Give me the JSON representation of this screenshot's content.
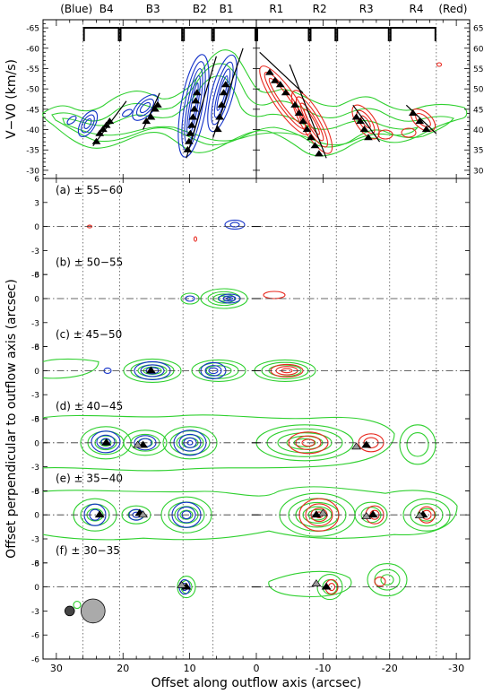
{
  "chart_data": {
    "type": "contour",
    "top_labels": [
      "(Blue)",
      "B4",
      "B3",
      "B2",
      "B1",
      "R1",
      "R2",
      "R3",
      "R4",
      "(Red)"
    ],
    "xlabel": "Offset along outflow axis (arcsec)",
    "xlim": [
      32,
      -32
    ],
    "xticks": [
      30,
      20,
      10,
      0,
      -10,
      -20,
      -30
    ],
    "xtick_labels": [
      "30",
      "20",
      "10",
      "0",
      "-10",
      "-20",
      "-30"
    ],
    "pv_panel": {
      "ylabel": "V−V0 (km/s)",
      "ylim": [
        -28,
        -67
      ],
      "yticks": [
        -65,
        -60,
        -55,
        -50,
        -45,
        -40,
        -35,
        -30
      ],
      "ytick_labels": [
        "-65",
        "-60",
        "-55",
        "-50",
        "-45",
        "-40",
        "-35",
        "-30"
      ],
      "ytick_labels_right": [
        "65",
        "60",
        "55",
        "50",
        "45",
        "40",
        "35",
        "30"
      ],
      "brackets": [
        {
          "label": "B4",
          "x1": 26,
          "x2": 20.5
        },
        {
          "label": "B3",
          "x1": 20.5,
          "x2": 11
        },
        {
          "label": "B2",
          "x1": 11,
          "x2": 6.5
        },
        {
          "label": "B1",
          "x1": 6.5,
          "x2": 0
        },
        {
          "label": "R1",
          "x1": 0,
          "x2": -8
        },
        {
          "label": "R2",
          "x1": -8,
          "x2": -12
        },
        {
          "label": "R3",
          "x1": -12,
          "x2": -20
        },
        {
          "label": "R4",
          "x1": -20,
          "x2": -27
        }
      ],
      "fit_lines": [
        {
          "x": [
            24.5,
            19.5
          ],
          "v": [
            -36,
            -47
          ]
        },
        {
          "x": [
            17,
            14.5
          ],
          "v": [
            -40,
            -49
          ]
        },
        {
          "x": [
            10.5,
            6
          ],
          "v": [
            -33,
            -58
          ]
        },
        {
          "x": [
            6.5,
            2
          ],
          "v": [
            -38,
            -60
          ]
        },
        {
          "x": [
            -0.5,
            -7
          ],
          "v": [
            -59,
            -49
          ]
        },
        {
          "x": [
            -5,
            -10.5
          ],
          "v": [
            -56,
            -33
          ]
        },
        {
          "x": [
            -14.5,
            -18.5
          ],
          "v": [
            -46,
            -37
          ]
        },
        {
          "x": [
            -22.5,
            -27
          ],
          "v": [
            -46,
            -39
          ]
        }
      ],
      "triangles": [
        {
          "x": 24.0,
          "v": -37
        },
        {
          "x": 23.5,
          "v": -39
        },
        {
          "x": 23.0,
          "v": -40
        },
        {
          "x": 22.5,
          "v": -41
        },
        {
          "x": 22.0,
          "v": -42
        },
        {
          "x": 16.5,
          "v": -42
        },
        {
          "x": 15.8,
          "v": -43
        },
        {
          "x": 15.2,
          "v": -45
        },
        {
          "x": 14.8,
          "v": -46
        },
        {
          "x": 10.3,
          "v": -35
        },
        {
          "x": 10.1,
          "v": -37
        },
        {
          "x": 9.9,
          "v": -39
        },
        {
          "x": 9.7,
          "v": -41
        },
        {
          "x": 9.5,
          "v": -43
        },
        {
          "x": 9.3,
          "v": -45
        },
        {
          "x": 9.1,
          "v": -47
        },
        {
          "x": 8.9,
          "v": -49
        },
        {
          "x": 5.8,
          "v": -40
        },
        {
          "x": 5.5,
          "v": -43
        },
        {
          "x": 5.2,
          "v": -46
        },
        {
          "x": 4.9,
          "v": -49
        },
        {
          "x": 4.6,
          "v": -51
        },
        {
          "x": -2.0,
          "v": -54
        },
        {
          "x": -2.8,
          "v": -52
        },
        {
          "x": -3.6,
          "v": -51
        },
        {
          "x": -4.4,
          "v": -49
        },
        {
          "x": -5.8,
          "v": -46
        },
        {
          "x": -6.4,
          "v": -44
        },
        {
          "x": -7.0,
          "v": -42
        },
        {
          "x": -7.6,
          "v": -40
        },
        {
          "x": -8.2,
          "v": -38
        },
        {
          "x": -8.8,
          "v": -36
        },
        {
          "x": -9.4,
          "v": -34
        },
        {
          "x": -15.0,
          "v": -43
        },
        {
          "x": -15.6,
          "v": -42
        },
        {
          "x": -16.2,
          "v": -40
        },
        {
          "x": -16.8,
          "v": -38
        },
        {
          "x": -23.5,
          "v": -44
        },
        {
          "x": -24.5,
          "v": -42
        },
        {
          "x": -25.5,
          "v": -40
        }
      ]
    },
    "map_panels": {
      "ylabel": "Offset perpendicular to outflow axis (arcsec)",
      "y_top": 6,
      "y_bottom": -54,
      "yticks": [
        3,
        0,
        -3
      ],
      "ytick_labels_left": [
        "3",
        "0",
        "-3"
      ],
      "panels": [
        {
          "label": "(a) ± 55−60",
          "offset": 0
        },
        {
          "label": "(b) ± 50−55",
          "offset": -9
        },
        {
          "label": "(c) ± 45−50",
          "offset": -18
        },
        {
          "label": "(d) ± 40−45",
          "offset": -27
        },
        {
          "label": "(e) ± 35−40",
          "offset": -36
        },
        {
          "label": "(f) ± 30−35",
          "offset": -45
        }
      ],
      "panel_ticks": [
        {
          "y": 6,
          "label": "6"
        },
        {
          "y": 3,
          "label": "3"
        },
        {
          "y": 0,
          "label": "0"
        },
        {
          "y": -3,
          "label": "-3"
        },
        {
          "y": -6,
          "label": "-6"
        },
        {
          "y": -9,
          "label": "-9"
        }
      ],
      "triangles": [
        {
          "panel": 2,
          "x": 15.8,
          "y": 0,
          "fill": "black"
        },
        {
          "panel": 3,
          "x": 22.5,
          "y": 0,
          "fill": "black"
        },
        {
          "panel": 3,
          "x": 17.0,
          "y": -0.3,
          "fill": "black"
        },
        {
          "panel": 3,
          "x": 17.8,
          "y": -0.3,
          "fill": "gray"
        },
        {
          "panel": 3,
          "x": -16.5,
          "y": -0.3,
          "fill": "black"
        },
        {
          "panel": 3,
          "x": -15.0,
          "y": -0.5,
          "fill": "gray"
        },
        {
          "panel": 4,
          "x": 23.5,
          "y": 0,
          "fill": "black"
        },
        {
          "panel": 4,
          "x": 17.5,
          "y": 0.2,
          "fill": "black"
        },
        {
          "panel": 4,
          "x": 17.0,
          "y": 0,
          "fill": "gray"
        },
        {
          "panel": 4,
          "x": -9.0,
          "y": 0,
          "fill": "black"
        },
        {
          "panel": 4,
          "x": -10.0,
          "y": 0.2,
          "fill": "gray"
        },
        {
          "panel": 4,
          "x": -17.5,
          "y": 0,
          "fill": "black"
        },
        {
          "panel": 4,
          "x": -16.5,
          "y": -0.2,
          "fill": "gray"
        },
        {
          "panel": 4,
          "x": -25.0,
          "y": 0,
          "fill": "black"
        },
        {
          "panel": 4,
          "x": -24.5,
          "y": -0.1,
          "fill": "gray"
        },
        {
          "panel": 5,
          "x": 10.5,
          "y": 0,
          "fill": "black"
        },
        {
          "panel": 5,
          "x": 11.2,
          "y": 0.2,
          "fill": "gray"
        },
        {
          "panel": 5,
          "x": -10.5,
          "y": 0,
          "fill": "black"
        },
        {
          "panel": 5,
          "x": -9.0,
          "y": 0.4,
          "fill": "gray"
        }
      ],
      "beams": [
        {
          "x": 28.0,
          "y": -48,
          "r": 0.6,
          "color": "#444444"
        },
        {
          "x": 24.5,
          "y": -48,
          "r": 1.5,
          "color": "#aaaaaa"
        }
      ]
    },
    "contour_colors": {
      "green": "#2fd02f",
      "blue": "#1432c8",
      "red": "#e8281e"
    },
    "series": [
      {
        "color": "green",
        "description": "outer contours"
      },
      {
        "color": "blue",
        "description": "blueshifted lobe"
      },
      {
        "color": "red",
        "description": "redshifted lobe"
      }
    ]
  }
}
